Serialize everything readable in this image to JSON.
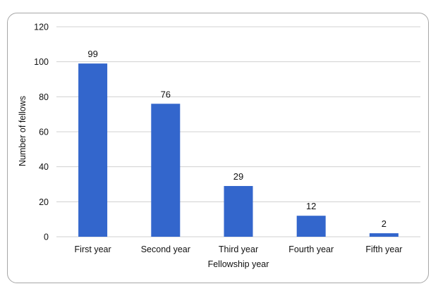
{
  "chart_data": {
    "type": "bar",
    "categories": [
      "First year",
      "Second year",
      "Third year",
      "Fourth year",
      "Fifth year"
    ],
    "values": [
      99,
      76,
      29,
      12,
      2
    ],
    "data_labels": [
      "99",
      "76",
      "29",
      "12",
      "2"
    ],
    "xlabel": "Fellowship year",
    "ylabel": "Number of fellows",
    "ylim": [
      0,
      120
    ],
    "yticks": [
      0,
      20,
      40,
      60,
      80,
      100,
      120
    ],
    "ytick_labels": [
      "0",
      "20",
      "40",
      "60",
      "80",
      "100",
      "120"
    ],
    "grid": true,
    "legend": "none",
    "bar_color": "#3366cc",
    "grid_color": "#d0d0d0"
  }
}
